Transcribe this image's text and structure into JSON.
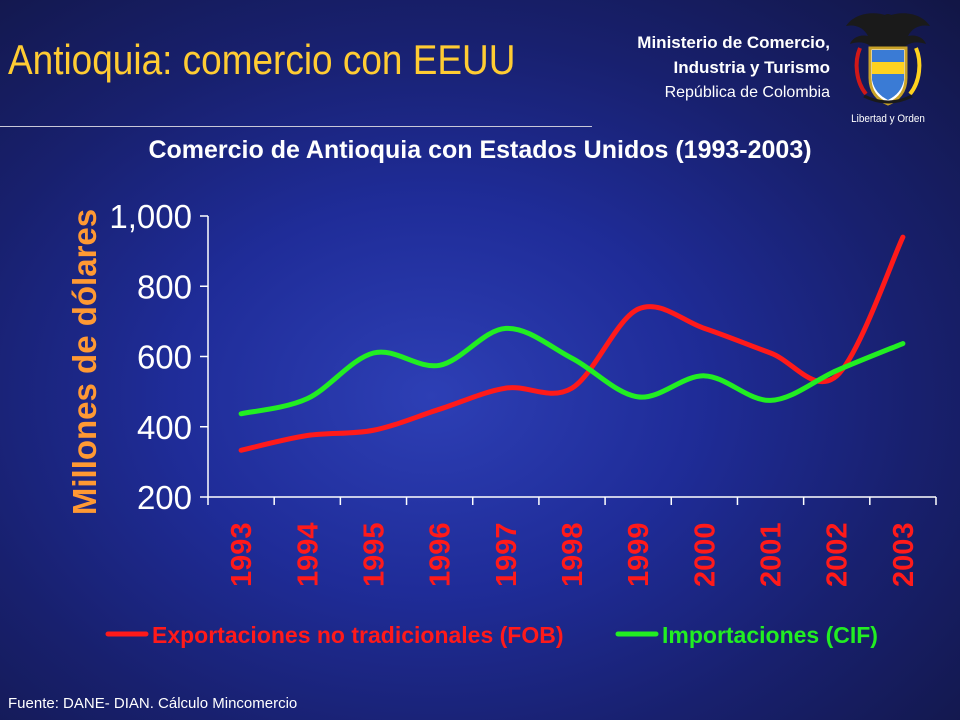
{
  "header": {
    "title": "Antioquia: comercio con EEUU",
    "ministry_line1": "Ministerio de Comercio,",
    "ministry_line2": "Industria y Turismo",
    "ministry_line3": "República de Colombia",
    "emblem_motto": "Libertad y Orden"
  },
  "footer": {
    "source": "Fuente: DANE- DIAN. Cálculo Mincomercio"
  },
  "chart_data": {
    "type": "line",
    "title": "Comercio de Antioquia con Estados Unidos (1993-2003)",
    "ylabel": "Millones de dólares",
    "xlabel": "",
    "ylim": [
      200,
      1000
    ],
    "yticks": [
      200,
      400,
      600,
      800,
      1000
    ],
    "ytick_labels": [
      "200",
      "400",
      "600",
      "800",
      "1,000"
    ],
    "categories": [
      "1993",
      "1994",
      "1995",
      "1996",
      "1997",
      "1998",
      "1999",
      "2000",
      "2001",
      "2002",
      "2003"
    ],
    "legend_position": "bottom",
    "series": [
      {
        "name": "Exportaciones no tradicionales (FOB)",
        "color": "#ff1a1a",
        "values": [
          333,
          375,
          390,
          450,
          510,
          510,
          735,
          680,
          610,
          545,
          940
        ]
      },
      {
        "name": "Importaciones (CIF)",
        "color": "#22ee22",
        "values": [
          437,
          480,
          610,
          575,
          680,
          595,
          485,
          545,
          475,
          560,
          637
        ]
      }
    ]
  }
}
